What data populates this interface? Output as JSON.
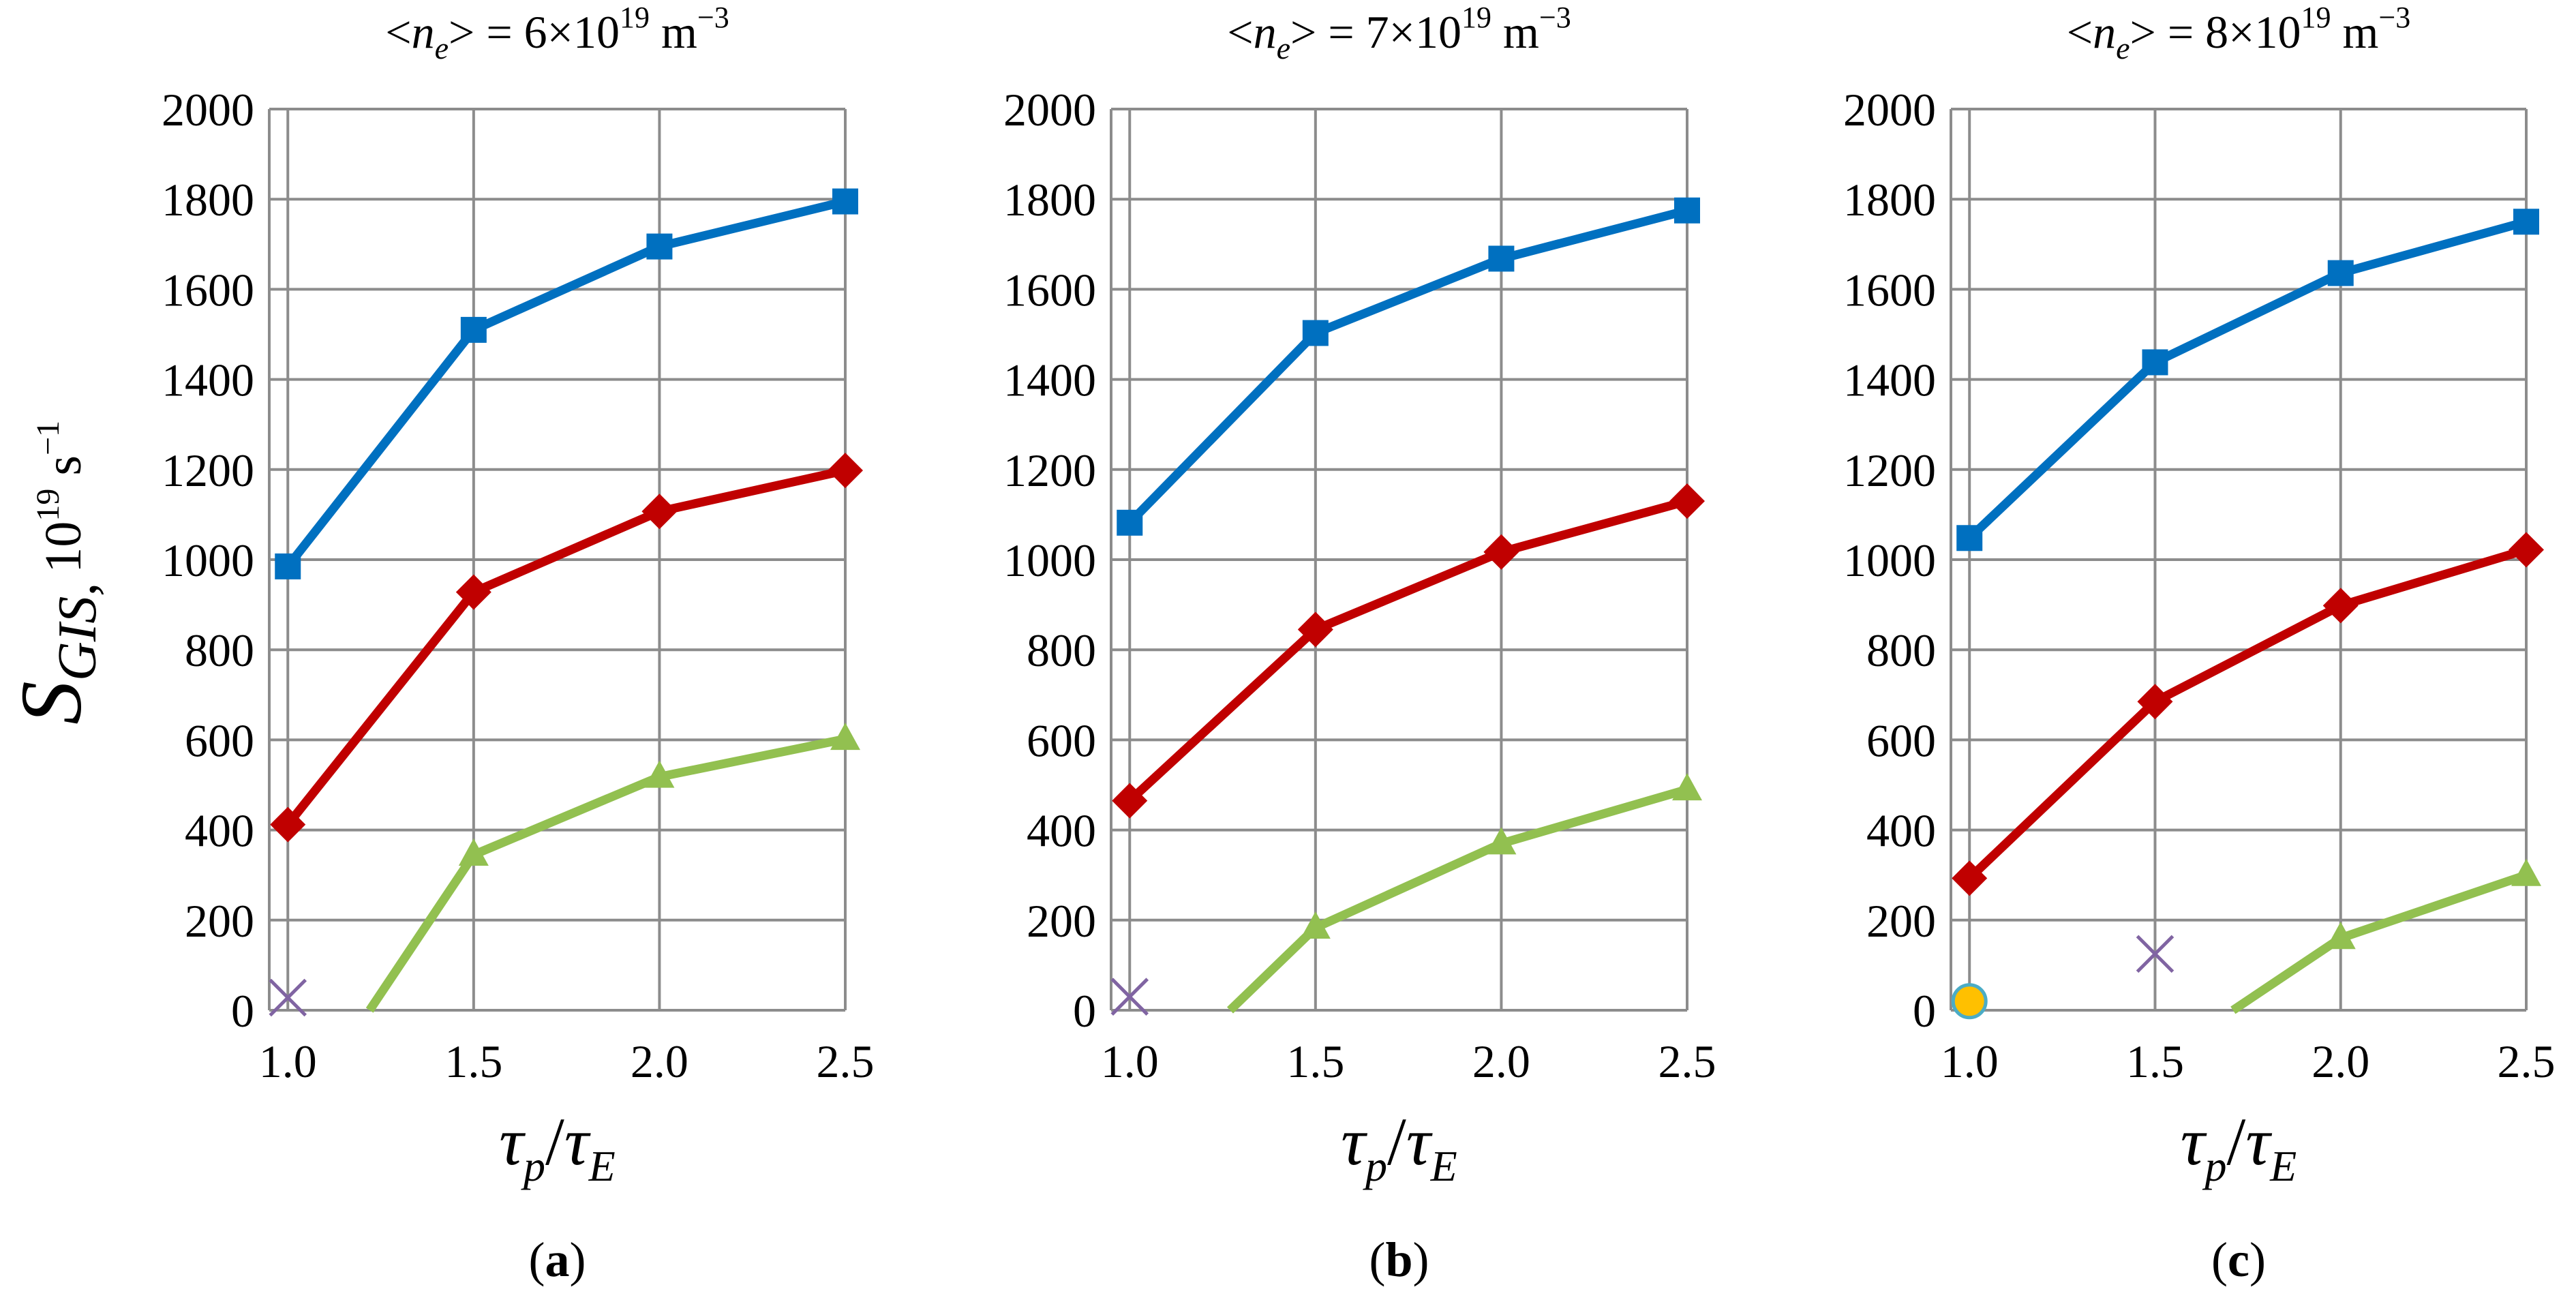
{
  "figure": {
    "ylabel": {
      "symbol": "S",
      "subscript": "GIS,",
      "unit_base": "10",
      "unit_exp": "19",
      "unit_rest": " s",
      "unit_rest_exp": "−1"
    },
    "xlabel": {
      "main": "τ",
      "sub1": "p",
      "slash": "/",
      "main2": "τ",
      "sub2": "E"
    }
  },
  "colors": {
    "series_blue": "#0070C0",
    "series_red": "#C00000",
    "series_green": "#92C050",
    "marker_x": "#8064A2",
    "marker_circle_fill": "#FFC000",
    "marker_circle_stroke": "#4BACC6",
    "grid": "#8C8C8C"
  },
  "chart_data": [
    {
      "type": "line",
      "panel_label": "a",
      "title": {
        "pre": "<",
        "var": "n",
        "var_sub": "e",
        "post": "> = 6×10",
        "exp": "19",
        "unit": " m",
        "unit_exp": "−3"
      },
      "x": [
        1.0,
        1.5,
        2.0,
        2.5
      ],
      "xticks": [
        "1.0",
        "1.5",
        "2.0",
        "2.5"
      ],
      "ylim": [
        0,
        2000
      ],
      "yticks": [
        "0",
        "200",
        "400",
        "600",
        "800",
        "1000",
        "1200",
        "1400",
        "1600",
        "1800",
        "2000"
      ],
      "series": [
        {
          "name": "blue",
          "marker": "square",
          "points": [
            [
              1.0,
              985
            ],
            [
              1.5,
              1510
            ],
            [
              2.0,
              1695
            ],
            [
              2.5,
              1795
            ]
          ]
        },
        {
          "name": "red",
          "marker": "diamond",
          "points": [
            [
              1.0,
              412
            ],
            [
              1.5,
              928
            ],
            [
              2.0,
              1107
            ],
            [
              2.5,
              1198
            ]
          ]
        },
        {
          "name": "green",
          "marker": "triangle",
          "points": [
            [
              1.22,
              0
            ],
            [
              1.5,
              345
            ],
            [
              2.0,
              518
            ],
            [
              2.5,
              602
            ]
          ],
          "markers_from": 1
        },
        {
          "name": "x-marker",
          "marker": "x",
          "points": [
            [
              1.0,
              28
            ]
          ]
        }
      ]
    },
    {
      "type": "line",
      "panel_label": "b",
      "title": {
        "pre": "<",
        "var": "n",
        "var_sub": "e",
        "post": "> = 7×10",
        "exp": "19",
        "unit": " m",
        "unit_exp": "−3"
      },
      "x": [
        1.0,
        1.5,
        2.0,
        2.5
      ],
      "xticks": [
        "1.0",
        "1.5",
        "2.0",
        "2.5"
      ],
      "ylim": [
        0,
        2000
      ],
      "yticks": [
        "0",
        "200",
        "400",
        "600",
        "800",
        "1000",
        "1200",
        "1400",
        "1600",
        "1800",
        "2000"
      ],
      "series": [
        {
          "name": "blue",
          "marker": "square",
          "points": [
            [
              1.0,
              1082
            ],
            [
              1.5,
              1503
            ],
            [
              2.0,
              1668
            ],
            [
              2.5,
              1775
            ]
          ]
        },
        {
          "name": "red",
          "marker": "diamond",
          "points": [
            [
              1.0,
              465
            ],
            [
              1.5,
              845
            ],
            [
              2.0,
              1017
            ],
            [
              2.5,
              1130
            ]
          ]
        },
        {
          "name": "green",
          "marker": "triangle",
          "points": [
            [
              1.27,
              0
            ],
            [
              1.5,
              183
            ],
            [
              2.0,
              370
            ],
            [
              2.5,
              490
            ]
          ],
          "markers_from": 1
        },
        {
          "name": "x-marker",
          "marker": "x",
          "points": [
            [
              1.0,
              30
            ]
          ]
        }
      ]
    },
    {
      "type": "line",
      "panel_label": "c",
      "title": {
        "pre": "<",
        "var": "n",
        "var_sub": "e",
        "post": "> = 8×10",
        "exp": "19",
        "unit": " m",
        "unit_exp": "−3"
      },
      "x": [
        1.0,
        1.5,
        2.0,
        2.5
      ],
      "xticks": [
        "1.0",
        "1.5",
        "2.0",
        "2.5"
      ],
      "ylim": [
        0,
        2000
      ],
      "yticks": [
        "0",
        "200",
        "400",
        "600",
        "800",
        "1000",
        "1200",
        "1400",
        "1600",
        "1800",
        "2000"
      ],
      "series": [
        {
          "name": "blue",
          "marker": "square",
          "points": [
            [
              1.0,
              1048
            ],
            [
              1.5,
              1438
            ],
            [
              2.0,
              1636
            ],
            [
              2.5,
              1750
            ]
          ]
        },
        {
          "name": "red",
          "marker": "diamond",
          "points": [
            [
              1.0,
              293
            ],
            [
              1.5,
              685
            ],
            [
              2.0,
              898
            ],
            [
              2.5,
              1022
            ]
          ]
        },
        {
          "name": "green",
          "marker": "triangle",
          "points": [
            [
              1.71,
              0
            ],
            [
              2.0,
              160
            ],
            [
              2.5,
              300
            ]
          ],
          "markers_from": 1
        },
        {
          "name": "x-marker",
          "marker": "x",
          "points": [
            [
              1.5,
              125
            ]
          ]
        },
        {
          "name": "circle-marker",
          "marker": "circle",
          "points": [
            [
              1.0,
              20
            ]
          ]
        }
      ]
    }
  ]
}
